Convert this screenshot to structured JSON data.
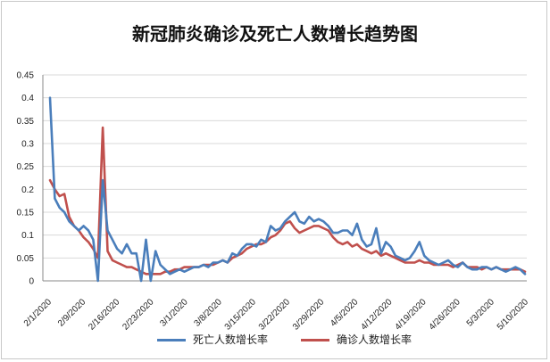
{
  "chart_data": {
    "type": "line",
    "title": "新冠肺炎确诊及死亡人数增长趋势图",
    "ylim": [
      0,
      0.45
    ],
    "yticks": [
      "0",
      "0.05",
      "0.1",
      "0.15",
      "0.2",
      "0.25",
      "0.3",
      "0.35",
      "0.4",
      "0.45"
    ],
    "xtick_labels": [
      "2/1/2020",
      "2/9/2020",
      "2/16/2020",
      "2/23/2020",
      "3/1/2020",
      "3/8/2020",
      "3/15/2020",
      "3/22/2020",
      "3/29/2020",
      "4/5/2020",
      "4/12/2020",
      "4/19/2020",
      "4/26/2020",
      "5/3/2020",
      "5/10/2020"
    ],
    "legend_position": "bottom",
    "series": [
      {
        "name": "死亡人数增长率",
        "color": "#4a7ebb",
        "values": [
          0.4,
          0.18,
          0.16,
          0.15,
          0.13,
          0.12,
          0.11,
          0.12,
          0.11,
          0.09,
          0.0,
          0.22,
          0.11,
          0.09,
          0.07,
          0.06,
          0.08,
          0.06,
          0.06,
          0.0,
          0.09,
          0.0,
          0.065,
          0.035,
          0.025,
          0.015,
          0.02,
          0.025,
          0.02,
          0.025,
          0.03,
          0.03,
          0.035,
          0.03,
          0.04,
          0.04,
          0.045,
          0.04,
          0.06,
          0.055,
          0.07,
          0.08,
          0.08,
          0.075,
          0.09,
          0.085,
          0.12,
          0.11,
          0.115,
          0.13,
          0.14,
          0.15,
          0.13,
          0.125,
          0.14,
          0.13,
          0.135,
          0.13,
          0.12,
          0.105,
          0.105,
          0.11,
          0.11,
          0.1,
          0.125,
          0.09,
          0.075,
          0.08,
          0.115,
          0.06,
          0.085,
          0.075,
          0.055,
          0.05,
          0.045,
          0.05,
          0.065,
          0.085,
          0.055,
          0.045,
          0.04,
          0.035,
          0.04,
          0.045,
          0.035,
          0.03,
          0.04,
          0.03,
          0.025,
          0.025,
          0.03,
          0.03,
          0.025,
          0.03,
          0.025,
          0.02,
          0.025,
          0.03,
          0.025,
          0.015
        ]
      },
      {
        "name": "确诊人数增长率",
        "color": "#c0504d",
        "values": [
          0.22,
          0.2,
          0.185,
          0.19,
          0.14,
          0.12,
          0.11,
          0.095,
          0.085,
          0.07,
          0.05,
          0.335,
          0.065,
          0.045,
          0.04,
          0.035,
          0.03,
          0.03,
          0.025,
          0.02,
          0.015,
          0.015,
          0.015,
          0.015,
          0.02,
          0.02,
          0.025,
          0.025,
          0.03,
          0.03,
          0.03,
          0.03,
          0.035,
          0.035,
          0.035,
          0.04,
          0.045,
          0.04,
          0.05,
          0.055,
          0.06,
          0.07,
          0.075,
          0.08,
          0.08,
          0.085,
          0.095,
          0.1,
          0.11,
          0.125,
          0.13,
          0.115,
          0.105,
          0.11,
          0.115,
          0.12,
          0.12,
          0.115,
          0.11,
          0.095,
          0.085,
          0.08,
          0.085,
          0.075,
          0.08,
          0.07,
          0.065,
          0.06,
          0.065,
          0.055,
          0.06,
          0.055,
          0.05,
          0.045,
          0.04,
          0.04,
          0.04,
          0.045,
          0.04,
          0.04,
          0.035,
          0.035,
          0.035,
          0.035,
          0.03,
          0.035,
          0.04,
          0.03,
          0.03,
          0.03,
          0.025,
          0.03,
          0.025,
          0.03,
          0.025,
          0.025,
          0.025,
          0.025,
          0.025,
          0.02
        ]
      }
    ]
  }
}
